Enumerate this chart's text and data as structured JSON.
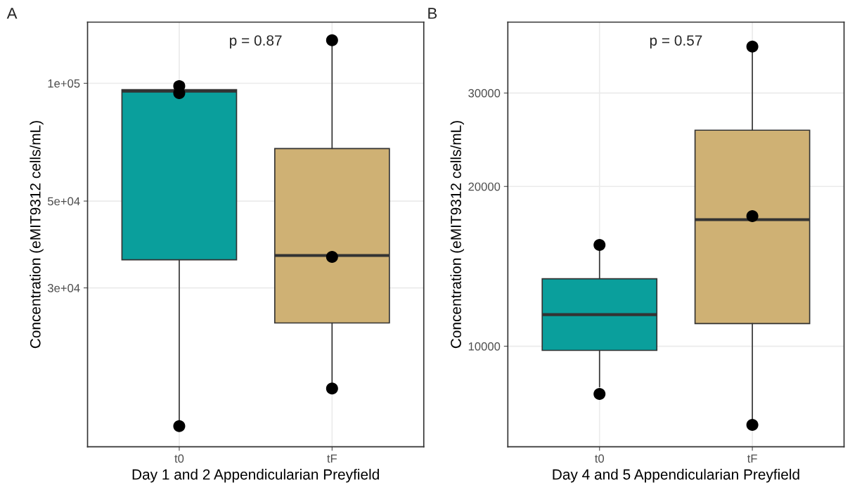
{
  "chart_data": [
    {
      "type": "box",
      "title": "A",
      "xlabel": "Day 1 and 2 Appendicularian Preyfield",
      "ylabel": "Concentration (eMIT9312 cells/mL)",
      "categories": [
        "t0",
        "tF"
      ],
      "colors": [
        "#0a9f9c",
        "#cfb174"
      ],
      "boxes": [
        {
          "low": 13270,
          "q1": 35400,
          "median": 95500,
          "q3": 96300,
          "high": 97500
        },
        {
          "low": 16590,
          "q1": 24400,
          "median": 36300,
          "q3": 68100,
          "high": 127700
        }
      ],
      "series": [
        {
          "type": "scatter",
          "x": [
            "t0",
            "t0",
            "t0",
            "tF",
            "tF",
            "tF"
          ],
          "values": [
            98400,
            94400,
            13300,
            128800,
            36000,
            16600
          ],
          "color": "#000000"
        }
      ],
      "log": "y",
      "ylim": [
        11780,
        143300
      ],
      "yticks": [
        {
          "value": 30000,
          "label": "3e+04"
        },
        {
          "value": 50000,
          "label": "5e+04"
        },
        {
          "value": 100000,
          "label": "1e+05"
        }
      ],
      "grid": true,
      "annotations": [
        "p = 0.87"
      ]
    },
    {
      "type": "box",
      "title": "B",
      "xlabel": "Day 4 and 5 Appendicularian Preyfield",
      "ylabel": "Concentration (eMIT9312 cells/mL)",
      "categories": [
        "t0",
        "tF"
      ],
      "colors": [
        "#0a9f9c",
        "#cfb174"
      ],
      "boxes": [
        {
          "low": 8380,
          "q1": 9820,
          "median": 11470,
          "q3": 13400,
          "high": 15710
        },
        {
          "low": 7060,
          "q1": 11030,
          "median": 17320,
          "q3": 25530,
          "high": 36900
        }
      ],
      "series": [
        {
          "type": "scatter",
          "x": [
            "t0",
            "t0",
            "tF",
            "tF",
            "tF"
          ],
          "values": [
            15520,
            8130,
            36700,
            17580,
            7110
          ],
          "color": "#000000"
        }
      ],
      "log": "y",
      "ylim": [
        6465,
        40800
      ],
      "yticks": [
        10000,
        20000,
        30000
      ],
      "grid": true,
      "annotations": [
        "p = 0.57"
      ]
    }
  ]
}
